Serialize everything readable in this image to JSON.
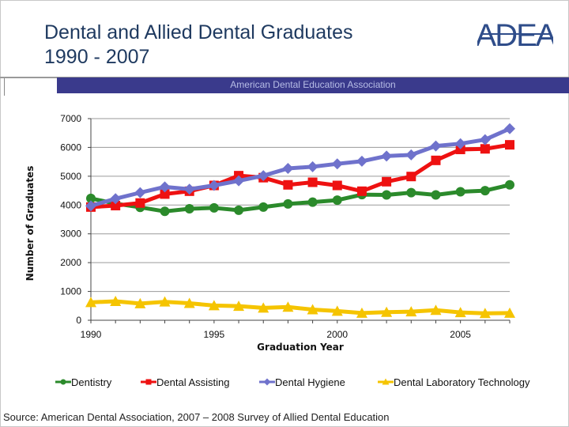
{
  "slide": {
    "title_line1": "Dental and Allied Dental Graduates",
    "title_line2": "1990 - 2007",
    "banner": "American Dental Education Association",
    "logo_text": "ADEA",
    "source": "Source: American Dental Association, 2007 – 2008 Survey of Allied Dental Education"
  },
  "colors": {
    "title": "#1f3a60",
    "banner_bg": "#3a3a8c",
    "banner_text": "#b7bde6",
    "logo": "#2f4d8a"
  },
  "chart_data": {
    "type": "line",
    "title": "",
    "xlabel": "Graduation Year",
    "ylabel": "Number of Graduates",
    "xlim": [
      1990,
      2007
    ],
    "ylim": [
      0,
      7000
    ],
    "yticks": [
      0,
      1000,
      2000,
      3000,
      4000,
      5000,
      6000,
      7000
    ],
    "xticks": [
      1990,
      1995,
      2000,
      2005
    ],
    "grid": true,
    "legend": "bottom",
    "x": [
      1990,
      1991,
      1992,
      1993,
      1994,
      1995,
      1996,
      1997,
      1998,
      1999,
      2000,
      2001,
      2002,
      2003,
      2004,
      2005,
      2006,
      2007
    ],
    "series": [
      {
        "name": "Dentistry",
        "color": "#2b8a2b",
        "marker": "circle",
        "values": [
          4230,
          4050,
          3920,
          3780,
          3870,
          3900,
          3820,
          3930,
          4040,
          4100,
          4170,
          4360,
          4350,
          4430,
          4350,
          4460,
          4500,
          4700
        ]
      },
      {
        "name": "Dental Assisting",
        "color": "#ee1111",
        "marker": "square",
        "values": [
          3930,
          3980,
          4070,
          4380,
          4480,
          4680,
          5020,
          4950,
          4700,
          4790,
          4680,
          4480,
          4810,
          4990,
          5550,
          5930,
          5950,
          6090
        ]
      },
      {
        "name": "Dental Hygiene",
        "color": "#6f72cc",
        "marker": "diamond",
        "values": [
          3970,
          4220,
          4430,
          4630,
          4550,
          4680,
          4840,
          5020,
          5270,
          5330,
          5430,
          5520,
          5700,
          5740,
          6050,
          6130,
          6270,
          6650
        ]
      },
      {
        "name": "Dental Laboratory Technology",
        "color": "#f5c400",
        "marker": "triangle",
        "values": [
          620,
          660,
          580,
          640,
          590,
          510,
          490,
          430,
          460,
          370,
          320,
          250,
          280,
          300,
          350,
          270,
          240,
          250
        ]
      }
    ]
  }
}
